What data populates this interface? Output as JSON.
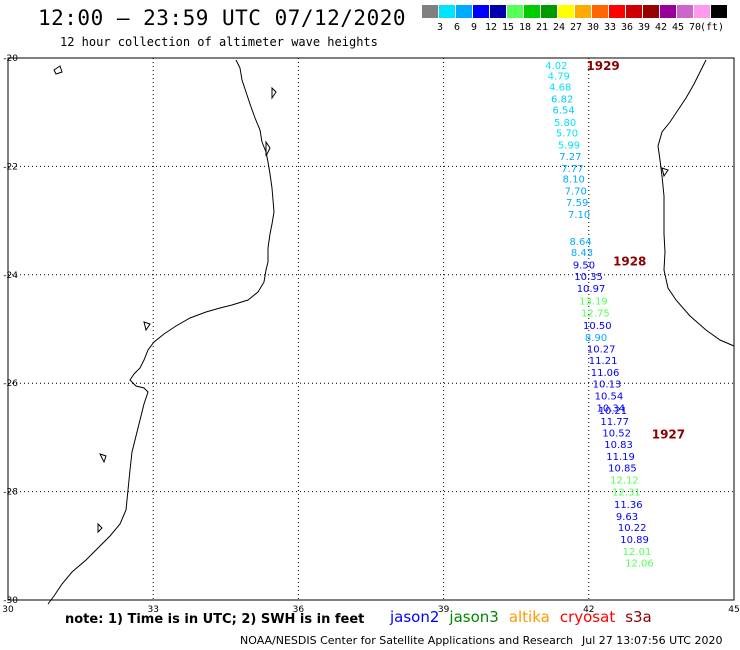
{
  "header": {
    "title": "12:00 – 23:59 UTC 07/12/2020",
    "subtitle": "12 hour collection of altimeter wave heights"
  },
  "legend": {
    "colors": [
      "#808080",
      "#00e5ff",
      "#00aaff",
      "#0000ff",
      "#0000aa",
      "#55ff55",
      "#00cc00",
      "#009900",
      "#ffff00",
      "#ffaa00",
      "#ff6600",
      "#ff0000",
      "#cc0000",
      "#990000",
      "#990099",
      "#cc66cc",
      "#ff99ee",
      "#000000"
    ],
    "labels": [
      "3",
      "6",
      "9",
      "12",
      "15",
      "18",
      "21",
      "24",
      "27",
      "30",
      "33",
      "36",
      "39",
      "42",
      "45",
      "70",
      "(ft)"
    ]
  },
  "axes": {
    "x_ticks": [
      "30",
      "33",
      "36",
      "39",
      "42",
      "45"
    ],
    "y_ticks": [
      "-20",
      "-22",
      "-24",
      "-26",
      "-28",
      "-30"
    ]
  },
  "tracks": [
    {
      "label": "1929",
      "color": "#8b0000",
      "lon": 41.95,
      "lat": -20.15
    },
    {
      "label": "1928",
      "color": "#8b0000",
      "lon": 42.5,
      "lat": -23.75
    },
    {
      "label": "1927",
      "color": "#8b0000",
      "lon": 43.3,
      "lat": -26.95
    }
  ],
  "observations": [
    {
      "value": "4.02",
      "lon": 41.1,
      "lat": -20.2,
      "color": "#00e5ff"
    },
    {
      "value": "4.79",
      "lon": 41.15,
      "lat": -20.4,
      "color": "#00e5ff"
    },
    {
      "value": "4.68",
      "lon": 41.18,
      "lat": -20.6,
      "color": "#00e5ff"
    },
    {
      "value": "6.82",
      "lon": 41.22,
      "lat": -20.82,
      "color": "#00ccf5"
    },
    {
      "value": "6.54",
      "lon": 41.25,
      "lat": -21.02,
      "color": "#00ccf5"
    },
    {
      "value": "5.80",
      "lon": 41.28,
      "lat": -21.25,
      "color": "#00e5ff"
    },
    {
      "value": "5.70",
      "lon": 41.32,
      "lat": -21.45,
      "color": "#00e5ff"
    },
    {
      "value": "5.99",
      "lon": 41.36,
      "lat": -21.67,
      "color": "#00e5ff"
    },
    {
      "value": "7.27",
      "lon": 41.39,
      "lat": -21.88,
      "color": "#00aaff"
    },
    {
      "value": "7.77",
      "lon": 41.43,
      "lat": -22.1,
      "color": "#00aaff"
    },
    {
      "value": "8.10",
      "lon": 41.46,
      "lat": -22.3,
      "color": "#00aaff"
    },
    {
      "value": "7.70",
      "lon": 41.5,
      "lat": -22.52,
      "color": "#00aaff"
    },
    {
      "value": "7.59",
      "lon": 41.53,
      "lat": -22.73,
      "color": "#00aaff"
    },
    {
      "value": "7.10",
      "lon": 41.57,
      "lat": -22.95,
      "color": "#00aaff"
    },
    {
      "value": "8.64",
      "lon": 41.6,
      "lat": -23.45,
      "color": "#00aaff"
    },
    {
      "value": "8.43",
      "lon": 41.63,
      "lat": -23.65,
      "color": "#00aaff"
    },
    {
      "value": "9.50",
      "lon": 41.67,
      "lat": -23.88,
      "color": "#0000ff"
    },
    {
      "value": "10.35",
      "lon": 41.7,
      "lat": -24.1,
      "color": "#0000ff"
    },
    {
      "value": "10.97",
      "lon": 41.75,
      "lat": -24.32,
      "color": "#0000ff"
    },
    {
      "value": "13.19",
      "lon": 41.8,
      "lat": -24.55,
      "color": "#55ff55"
    },
    {
      "value": "12.75",
      "lon": 41.84,
      "lat": -24.77,
      "color": "#55ff55"
    },
    {
      "value": "10.50",
      "lon": 41.88,
      "lat": -25.0,
      "color": "#0000ff"
    },
    {
      "value": "8.90",
      "lon": 41.92,
      "lat": -25.22,
      "color": "#00aaff"
    },
    {
      "value": "10.27",
      "lon": 41.96,
      "lat": -25.43,
      "color": "#0000ff"
    },
    {
      "value": "11.21",
      "lon": 42.0,
      "lat": -25.65,
      "color": "#0000ff"
    },
    {
      "value": "11.06",
      "lon": 42.04,
      "lat": -25.87,
      "color": "#0000ff"
    },
    {
      "value": "10.13",
      "lon": 42.08,
      "lat": -26.08,
      "color": "#0000ff"
    },
    {
      "value": "10.54",
      "lon": 42.12,
      "lat": -26.3,
      "color": "#0000ff"
    },
    {
      "value": "10.34",
      "lon": 42.16,
      "lat": -26.52,
      "color": "#0000ff"
    },
    {
      "value": "10.21",
      "lon": 42.2,
      "lat": -26.57,
      "color": "#0000ff"
    },
    {
      "value": "11.77",
      "lon": 42.24,
      "lat": -26.77,
      "color": "#0000ff"
    },
    {
      "value": "10.52",
      "lon": 42.28,
      "lat": -26.98,
      "color": "#0000ff"
    },
    {
      "value": "10.83",
      "lon": 42.32,
      "lat": -27.2,
      "color": "#0000ff"
    },
    {
      "value": "11.19",
      "lon": 42.36,
      "lat": -27.42,
      "color": "#0000ff"
    },
    {
      "value": "10.85",
      "lon": 42.4,
      "lat": -27.63,
      "color": "#0000ff"
    },
    {
      "value": "12.12",
      "lon": 42.44,
      "lat": -27.85,
      "color": "#55ff55"
    },
    {
      "value": "12.31",
      "lon": 42.48,
      "lat": -28.07,
      "color": "#55ff55"
    },
    {
      "value": "11.36",
      "lon": 42.52,
      "lat": -28.3,
      "color": "#0000ff"
    },
    {
      "value": "9.63",
      "lon": 42.56,
      "lat": -28.52,
      "color": "#0000ff"
    },
    {
      "value": "10.22",
      "lon": 42.6,
      "lat": -28.73,
      "color": "#0000ff"
    },
    {
      "value": "10.89",
      "lon": 42.65,
      "lat": -28.95,
      "color": "#0000ff"
    },
    {
      "value": "12.01",
      "lon": 42.7,
      "lat": -29.17,
      "color": "#55ff55"
    },
    {
      "value": "12.06",
      "lon": 42.75,
      "lat": -29.38,
      "color": "#55ff55"
    }
  ],
  "footer": {
    "note": "note: 1) Time is in UTC; 2) SWH is in feet",
    "satellites": [
      {
        "name": "jason2",
        "color": "#0000ff"
      },
      {
        "name": "jason3",
        "color": "#008800"
      },
      {
        "name": "altika",
        "color": "#ff9900"
      },
      {
        "name": "cryosat",
        "color": "#ff0000"
      },
      {
        "name": "s3a",
        "color": "#8b0000"
      }
    ],
    "credit": "NOAA/NESDIS Center for Satellite Applications and Research",
    "timestamp": "Jul 27 13:07:56 UTC 2020"
  }
}
